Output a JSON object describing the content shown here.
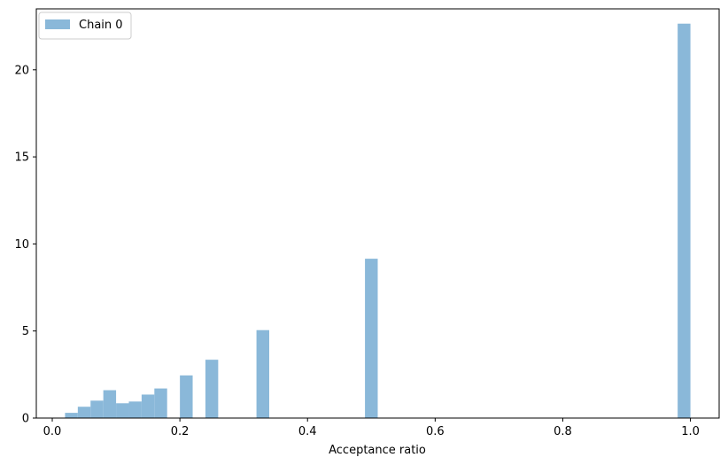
{
  "chart_data": {
    "type": "bar",
    "subtype": "histogram",
    "title": "",
    "xlabel": "Acceptance ratio",
    "ylabel": "",
    "xlim": [
      -0.025,
      1.045
    ],
    "ylim": [
      0,
      23.5
    ],
    "xticks": [
      0.0,
      0.2,
      0.4,
      0.6,
      0.8,
      1.0
    ],
    "xtick_labels": [
      "0.0",
      "0.2",
      "0.4",
      "0.6",
      "0.8",
      "1.0"
    ],
    "yticks": [
      0,
      5,
      10,
      15,
      20
    ],
    "ytick_labels": [
      "0",
      "5",
      "10",
      "15",
      "20"
    ],
    "grid": false,
    "legend_position": "top-left",
    "series": [
      {
        "name": "Chain 0",
        "color": "#8ab8d9",
        "bins": [
          {
            "x0": 0.02,
            "x1": 0.04,
            "value": 0.3
          },
          {
            "x0": 0.04,
            "x1": 0.06,
            "value": 0.65
          },
          {
            "x0": 0.06,
            "x1": 0.08,
            "value": 1.0
          },
          {
            "x0": 0.08,
            "x1": 0.1,
            "value": 1.6
          },
          {
            "x0": 0.1,
            "x1": 0.12,
            "value": 0.85
          },
          {
            "x0": 0.12,
            "x1": 0.14,
            "value": 0.95
          },
          {
            "x0": 0.14,
            "x1": 0.16,
            "value": 1.35
          },
          {
            "x0": 0.16,
            "x1": 0.18,
            "value": 1.7
          },
          {
            "x0": 0.2,
            "x1": 0.22,
            "value": 2.45
          },
          {
            "x0": 0.24,
            "x1": 0.26,
            "value": 3.35
          },
          {
            "x0": 0.32,
            "x1": 0.34,
            "value": 5.05
          },
          {
            "x0": 0.49,
            "x1": 0.51,
            "value": 9.15
          },
          {
            "x0": 0.98,
            "x1": 1.0,
            "value": 22.65
          }
        ]
      }
    ]
  }
}
